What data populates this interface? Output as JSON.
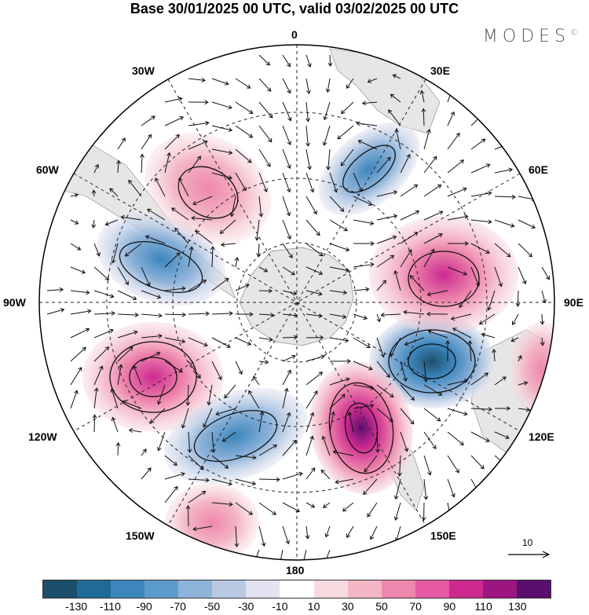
{
  "title": "Base 30/01/2025 00 UTC, valid 03/02/2025 00 UTC",
  "logo": "MODES",
  "logo_mark": "©",
  "longitudes": {
    "lon_0": "0",
    "lon_30e": "30E",
    "lon_60e": "60E",
    "lon_90e": "90E",
    "lon_120e": "120E",
    "lon_150e": "150E",
    "lon_180": "180",
    "lon_150w": "150W",
    "lon_120w": "120W",
    "lon_90w": "90W",
    "lon_60w": "60W",
    "lon_30w": "30W"
  },
  "reference_vector": {
    "label": "10"
  },
  "colorbar": {
    "colors": [
      "#1d4e6b",
      "#1f6a99",
      "#3d86bd",
      "#5c9ccb",
      "#8eb3d9",
      "#b9c8e3",
      "#e2e2f0",
      "#ffffff",
      "#f7dbe0",
      "#f3b6c4",
      "#ee87ad",
      "#e65aa4",
      "#cc2a8f",
      "#9c1581",
      "#5a0f6e"
    ],
    "labels": [
      "-130",
      "-110",
      "-90",
      "-70",
      "-50",
      "-30",
      "-10",
      "10",
      "30",
      "50",
      "70",
      "90",
      "110",
      "130"
    ]
  },
  "anomaly_centers": [
    {
      "lon_label": "-",
      "value": -90,
      "color": "#3d86bd"
    },
    {
      "value": 90,
      "color": "#cc2a8f"
    },
    {
      "value": -130,
      "color": "#1d4e6b"
    },
    {
      "value": 130,
      "color": "#5a0f6e"
    },
    {
      "value": -70,
      "color": "#5c9ccb"
    },
    {
      "value": 110,
      "color": "#9c1581"
    },
    {
      "value": 50,
      "color": "#f3b6c4"
    },
    {
      "value": 70,
      "color": "#ee87ad"
    },
    {
      "value": 50,
      "color": "#f3b6c4"
    },
    {
      "value": -70,
      "color": "#5c9ccb"
    }
  ]
}
